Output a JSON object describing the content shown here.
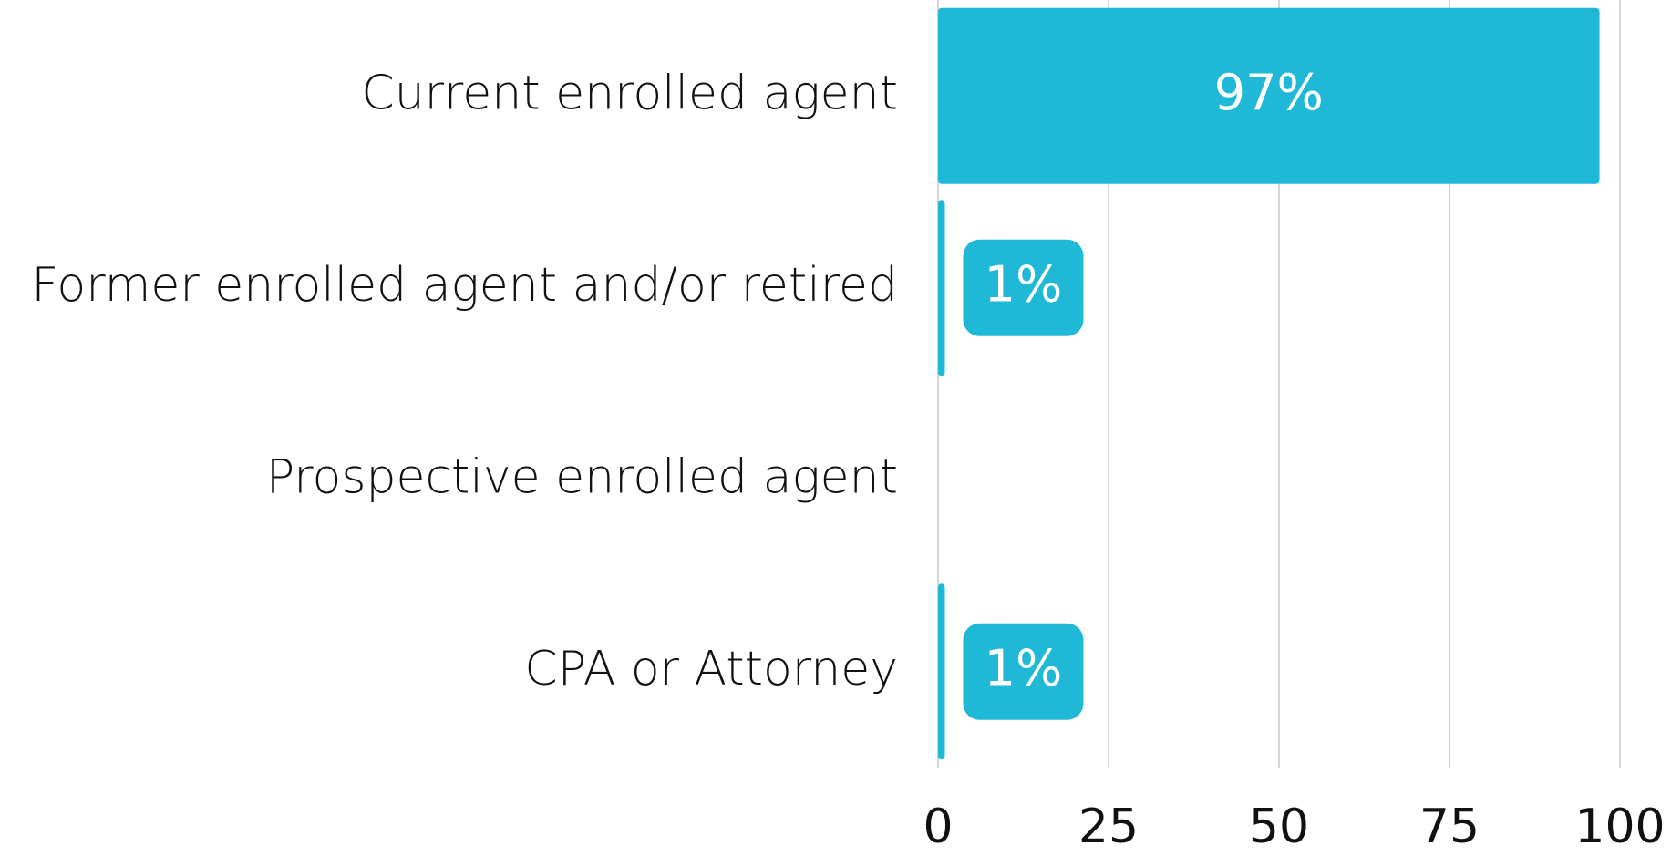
{
  "chart_data": {
    "type": "barh",
    "categories": [
      "Current enrolled agent",
      "Former enrolled agent and/or retired",
      "Prospective enrolled agent",
      "CPA or Attorney"
    ],
    "values": [
      97,
      1,
      0,
      1
    ],
    "value_labels": [
      "97%",
      "1%",
      null,
      "1%"
    ],
    "color": "#1fb9d7",
    "xlim": [
      0,
      100
    ],
    "xticks": [
      0,
      25,
      50,
      75,
      100
    ],
    "grid": true
  }
}
